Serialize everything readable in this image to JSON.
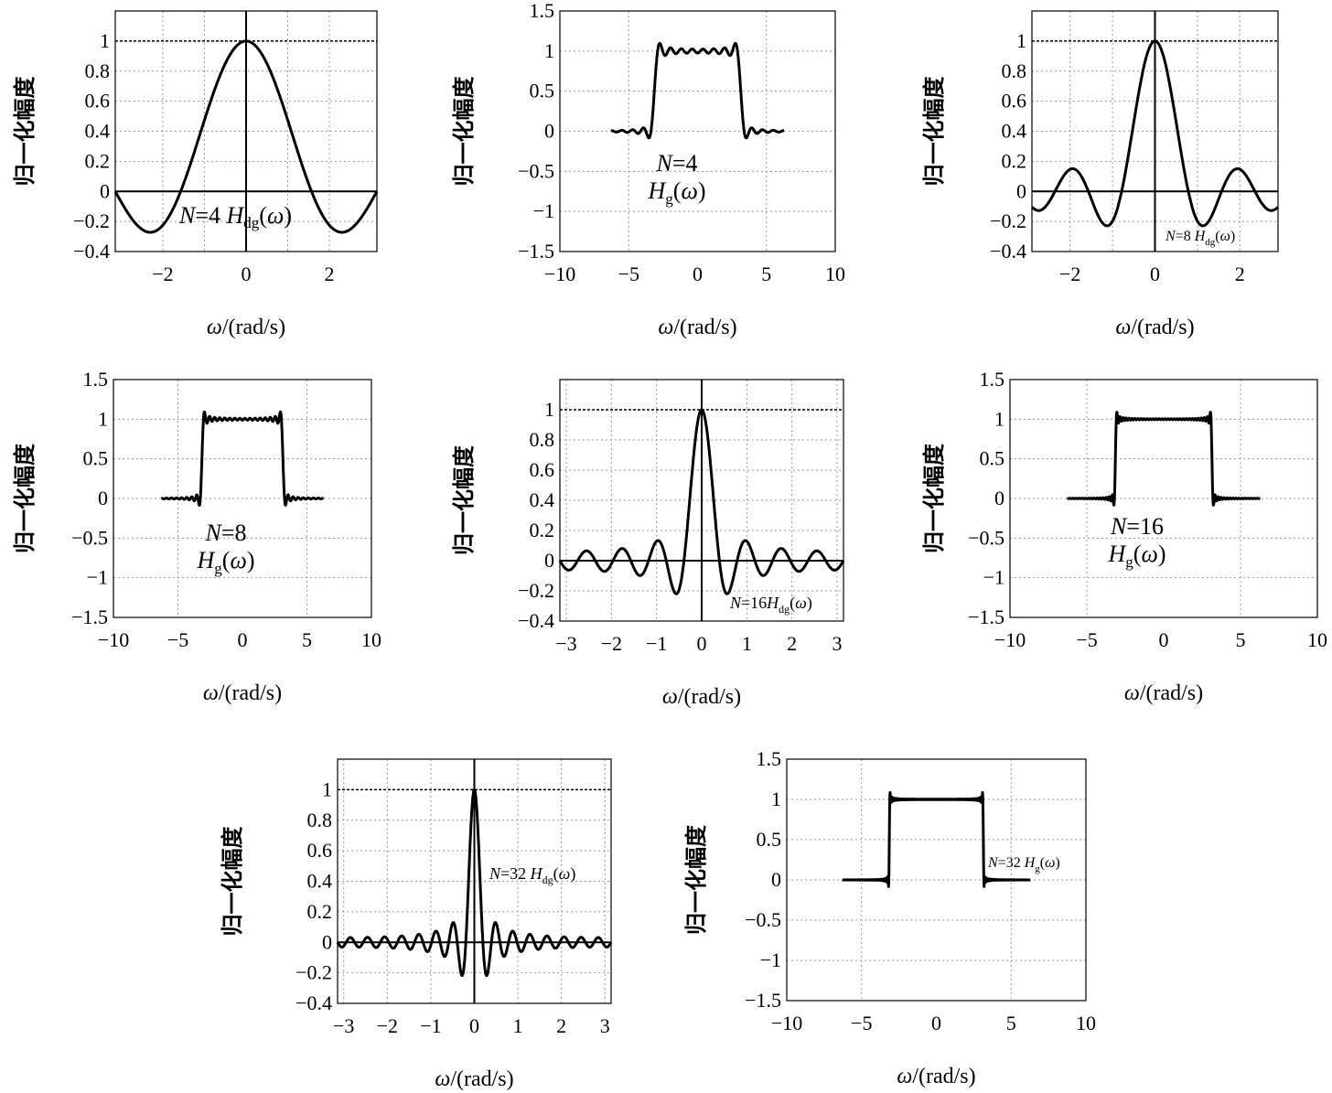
{
  "chart_data": [
    {
      "type": "line",
      "kind": "dg",
      "N": 4,
      "x_axis": {
        "label": "ω/(rad/s)",
        "range": [
          -3.1416,
          3.1416
        ],
        "ticks": [
          -2,
          0,
          2
        ]
      },
      "y_axis": {
        "label": "归一化幅度",
        "range": [
          -0.4,
          1.2
        ],
        "ticks": [
          -0.4,
          -0.2,
          0,
          0.2,
          0.4,
          0.6,
          0.8,
          1
        ]
      },
      "annotation": {
        "pre": "N",
        "eq": "=4 ",
        "H": "H",
        "sub": "dg",
        "arg": "(ω)"
      },
      "reference_lines": {
        "horizontal": [
          0,
          1
        ],
        "vertical": [
          0
        ]
      },
      "grid": true
    },
    {
      "type": "line",
      "kind": "g",
      "N": 4,
      "x_axis": {
        "label": "ω/(rad/s)",
        "range": [
          -10,
          10
        ],
        "ticks": [
          -10,
          -5,
          0,
          5,
          10
        ]
      },
      "y_axis": {
        "label": "归一化幅度",
        "range": [
          -1.5,
          1.5
        ],
        "ticks": [
          -1.5,
          -1,
          -0.5,
          0,
          0.5,
          1,
          1.5
        ]
      },
      "annotation": {
        "pre": "N",
        "eq": "=4",
        "H": "H",
        "sub": "g",
        "arg": "(ω)"
      },
      "grid": true
    },
    {
      "type": "line",
      "kind": "dg",
      "N": 8,
      "x_axis": {
        "label": "ω/(rad/s)",
        "range": [
          -2.9,
          2.9
        ],
        "ticks": [
          -2,
          0,
          2
        ]
      },
      "y_axis": {
        "label": "归一化幅度",
        "range": [
          -0.4,
          1.2
        ],
        "ticks": [
          -0.4,
          -0.2,
          0,
          0.2,
          0.4,
          0.6,
          0.8,
          1
        ]
      },
      "annotation": {
        "pre": "N",
        "eq": "=8 ",
        "H": "H",
        "sub": "dg",
        "arg": "(ω)"
      },
      "reference_lines": {
        "horizontal": [
          0,
          1
        ],
        "vertical": [
          0
        ]
      },
      "grid": true
    },
    {
      "type": "line",
      "kind": "g",
      "N": 8,
      "x_axis": {
        "label": "ω/(rad/s)",
        "range": [
          -10,
          10
        ],
        "ticks": [
          -10,
          -5,
          0,
          5,
          10
        ]
      },
      "y_axis": {
        "label": "归一化幅度",
        "range": [
          -1.5,
          1.5
        ],
        "ticks": [
          -1.5,
          -1,
          -0.5,
          0,
          0.5,
          1,
          1.5
        ]
      },
      "annotation": {
        "pre": "N",
        "eq": "=8",
        "H": "H",
        "sub": "g",
        "arg": "(ω)"
      },
      "grid": true
    },
    {
      "type": "line",
      "kind": "dg",
      "N": 16,
      "x_axis": {
        "label": "ω/(rad/s)",
        "range": [
          -3.1416,
          3.1416
        ],
        "ticks": [
          -3,
          -2,
          -1,
          0,
          1,
          2,
          3
        ]
      },
      "y_axis": {
        "label": "归一化幅度",
        "range": [
          -0.4,
          1.2
        ],
        "ticks": [
          -0.4,
          -0.2,
          0,
          0.2,
          0.4,
          0.6,
          0.8,
          1
        ]
      },
      "annotation": {
        "pre": "N",
        "eq": "=16",
        "H": "H",
        "sub": "dg",
        "arg": "(ω)"
      },
      "reference_lines": {
        "horizontal": [
          0,
          1
        ],
        "vertical": [
          0
        ]
      },
      "grid": true
    },
    {
      "type": "line",
      "kind": "g",
      "N": 16,
      "x_axis": {
        "label": "ω/(rad/s)",
        "range": [
          -10,
          10
        ],
        "ticks": [
          -10,
          -5,
          0,
          5,
          10
        ]
      },
      "y_axis": {
        "label": "归一化幅度",
        "range": [
          -1.5,
          1.5
        ],
        "ticks": [
          -1.5,
          -1,
          -0.5,
          0,
          0.5,
          1,
          1.5
        ]
      },
      "annotation": {
        "pre": "N",
        "eq": "=16",
        "H": "H",
        "sub": "g",
        "arg": "(ω)"
      },
      "grid": true
    },
    {
      "type": "line",
      "kind": "dg",
      "N": 32,
      "x_axis": {
        "label": "ω/(rad/s)",
        "range": [
          -3.1416,
          3.1416
        ],
        "ticks": [
          -3,
          -2,
          -1,
          0,
          1,
          2,
          3
        ]
      },
      "y_axis": {
        "label": "归一化幅度",
        "range": [
          -0.4,
          1.2
        ],
        "ticks": [
          -0.4,
          -0.2,
          0,
          0.2,
          0.4,
          0.6,
          0.8,
          1
        ]
      },
      "annotation": {
        "pre": "N",
        "eq": "=32 ",
        "H": "H",
        "sub": "dg",
        "arg": "(ω)"
      },
      "reference_lines": {
        "horizontal": [
          0,
          1
        ],
        "vertical": [
          0
        ]
      },
      "grid": true
    },
    {
      "type": "line",
      "kind": "g",
      "N": 32,
      "x_axis": {
        "label": "ω/(rad/s)",
        "range": [
          -10,
          10
        ],
        "ticks": [
          -10,
          -5,
          0,
          5,
          10
        ]
      },
      "y_axis": {
        "label": "归一化幅度",
        "range": [
          -1.5,
          1.5
        ],
        "ticks": [
          -1.5,
          -1,
          -0.5,
          0,
          0.5,
          1,
          1.5
        ]
      },
      "annotation": {
        "pre": "N",
        "eq": "=32 ",
        "H": "H",
        "sub": "g",
        "arg": "(ω)"
      },
      "grid": true
    }
  ]
}
